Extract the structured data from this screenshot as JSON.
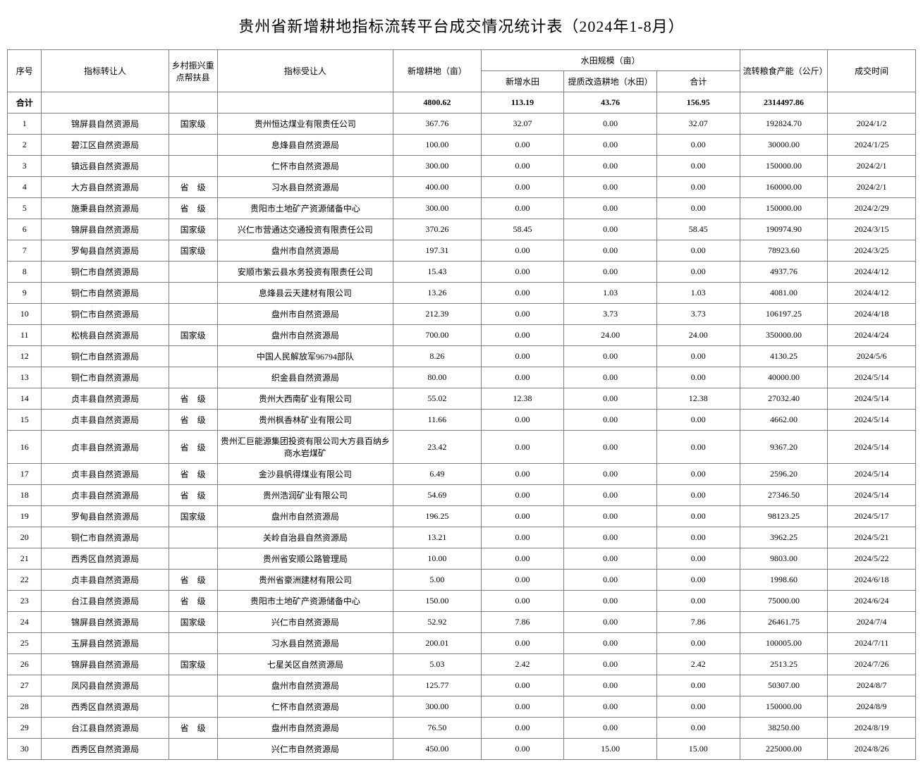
{
  "title": "贵州省新增耕地指标流转平台成交情况统计表（2024年1-8月）",
  "headers": {
    "seq": "序号",
    "transferor": "指标转让人",
    "village": "乡村振兴重点帮扶县",
    "transferee": "指标受让人",
    "newland": "新增耕地（亩）",
    "paddyGroup": "水田规模（亩）",
    "newpaddy": "新增水田",
    "improve": "提质改造耕地（水田）",
    "subtotal": "合计",
    "grain": "流转粮食产能（公斤）",
    "date": "成交时间"
  },
  "totalLabel": "合计",
  "totals": {
    "newland": "4800.62",
    "newpaddy": "113.19",
    "improve": "43.76",
    "subtotal": "156.95",
    "grain": "2314497.86"
  },
  "rows": [
    {
      "seq": "1",
      "transferor": "锦屏县自然资源局",
      "village": "国家级",
      "transferee": "贵州恒达煤业有限责任公司",
      "newland": "367.76",
      "newpaddy": "32.07",
      "improve": "0.00",
      "subtotal": "32.07",
      "grain": "192824.70",
      "date": "2024/1/2"
    },
    {
      "seq": "2",
      "transferor": "碧江区自然资源局",
      "village": "",
      "transferee": "息烽县自然资源局",
      "newland": "100.00",
      "newpaddy": "0.00",
      "improve": "0.00",
      "subtotal": "0.00",
      "grain": "30000.00",
      "date": "2024/1/25"
    },
    {
      "seq": "3",
      "transferor": "镇远县自然资源局",
      "village": "",
      "transferee": "仁怀市自然资源局",
      "newland": "300.00",
      "newpaddy": "0.00",
      "improve": "0.00",
      "subtotal": "0.00",
      "grain": "150000.00",
      "date": "2024/2/1"
    },
    {
      "seq": "4",
      "transferor": "大方县自然资源局",
      "village": "省　级",
      "transferee": "习水县自然资源局",
      "newland": "400.00",
      "newpaddy": "0.00",
      "improve": "0.00",
      "subtotal": "0.00",
      "grain": "160000.00",
      "date": "2024/2/1"
    },
    {
      "seq": "5",
      "transferor": "施秉县自然资源局",
      "village": "省　级",
      "transferee": "贵阳市土地矿产资源储备中心",
      "newland": "300.00",
      "newpaddy": "0.00",
      "improve": "0.00",
      "subtotal": "0.00",
      "grain": "150000.00",
      "date": "2024/2/29"
    },
    {
      "seq": "6",
      "transferor": "锦屏县自然资源局",
      "village": "国家级",
      "transferee": "兴仁市营通达交通投资有限责任公司",
      "newland": "370.26",
      "newpaddy": "58.45",
      "improve": "0.00",
      "subtotal": "58.45",
      "grain": "190974.90",
      "date": "2024/3/15"
    },
    {
      "seq": "7",
      "transferor": "罗甸县自然资源局",
      "village": "国家级",
      "transferee": "盘州市自然资源局",
      "newland": "197.31",
      "newpaddy": "0.00",
      "improve": "0.00",
      "subtotal": "0.00",
      "grain": "78923.60",
      "date": "2024/3/25"
    },
    {
      "seq": "8",
      "transferor": "铜仁市自然资源局",
      "village": "",
      "transferee": "安顺市紫云县水务投资有限责任公司",
      "newland": "15.43",
      "newpaddy": "0.00",
      "improve": "0.00",
      "subtotal": "0.00",
      "grain": "4937.76",
      "date": "2024/4/12"
    },
    {
      "seq": "9",
      "transferor": "铜仁市自然资源局",
      "village": "",
      "transferee": "息烽县云天建材有限公司",
      "newland": "13.26",
      "newpaddy": "0.00",
      "improve": "1.03",
      "subtotal": "1.03",
      "grain": "4081.00",
      "date": "2024/4/12"
    },
    {
      "seq": "10",
      "transferor": "铜仁市自然资源局",
      "village": "",
      "transferee": "盘州市自然资源局",
      "newland": "212.39",
      "newpaddy": "0.00",
      "improve": "3.73",
      "subtotal": "3.73",
      "grain": "106197.25",
      "date": "2024/4/18"
    },
    {
      "seq": "11",
      "transferor": "松桃县自然资源局",
      "village": "国家级",
      "transferee": "盘州市自然资源局",
      "newland": "700.00",
      "newpaddy": "0.00",
      "improve": "24.00",
      "subtotal": "24.00",
      "grain": "350000.00",
      "date": "2024/4/24"
    },
    {
      "seq": "12",
      "transferor": "铜仁市自然资源局",
      "village": "",
      "transferee": "中国人民解放军96794部队",
      "newland": "8.26",
      "newpaddy": "0.00",
      "improve": "0.00",
      "subtotal": "0.00",
      "grain": "4130.25",
      "date": "2024/5/6"
    },
    {
      "seq": "13",
      "transferor": "铜仁市自然资源局",
      "village": "",
      "transferee": "织金县自然资源局",
      "newland": "80.00",
      "newpaddy": "0.00",
      "improve": "0.00",
      "subtotal": "0.00",
      "grain": "40000.00",
      "date": "2024/5/14"
    },
    {
      "seq": "14",
      "transferor": "贞丰县自然资源局",
      "village": "省　级",
      "transferee": "贵州大西南矿业有限公司",
      "newland": "55.02",
      "newpaddy": "12.38",
      "improve": "0.00",
      "subtotal": "12.38",
      "grain": "27032.40",
      "date": "2024/5/14"
    },
    {
      "seq": "15",
      "transferor": "贞丰县自然资源局",
      "village": "省　级",
      "transferee": "贵州枫香林矿业有限公司",
      "newland": "11.66",
      "newpaddy": "0.00",
      "improve": "0.00",
      "subtotal": "0.00",
      "grain": "4662.00",
      "date": "2024/5/14"
    },
    {
      "seq": "16",
      "transferor": "贞丰县自然资源局",
      "village": "省　级",
      "transferee": "贵州汇巨能源集团投资有限公司大方县百纳乡商水岩煤矿",
      "newland": "23.42",
      "newpaddy": "0.00",
      "improve": "0.00",
      "subtotal": "0.00",
      "grain": "9367.20",
      "date": "2024/5/14"
    },
    {
      "seq": "17",
      "transferor": "贞丰县自然资源局",
      "village": "省　级",
      "transferee": "金沙县帆得煤业有限公司",
      "newland": "6.49",
      "newpaddy": "0.00",
      "improve": "0.00",
      "subtotal": "0.00",
      "grain": "2596.20",
      "date": "2024/5/14"
    },
    {
      "seq": "18",
      "transferor": "贞丰县自然资源局",
      "village": "省　级",
      "transferee": "贵州浩润矿业有限公司",
      "newland": "54.69",
      "newpaddy": "0.00",
      "improve": "0.00",
      "subtotal": "0.00",
      "grain": "27346.50",
      "date": "2024/5/14"
    },
    {
      "seq": "19",
      "transferor": "罗甸县自然资源局",
      "village": "国家级",
      "transferee": "盘州市自然资源局",
      "newland": "196.25",
      "newpaddy": "0.00",
      "improve": "0.00",
      "subtotal": "0.00",
      "grain": "98123.25",
      "date": "2024/5/17"
    },
    {
      "seq": "20",
      "transferor": "铜仁市自然资源局",
      "village": "",
      "transferee": "关岭自治县自然资源局",
      "newland": "13.21",
      "newpaddy": "0.00",
      "improve": "0.00",
      "subtotal": "0.00",
      "grain": "3962.25",
      "date": "2024/5/21"
    },
    {
      "seq": "21",
      "transferor": "西秀区自然资源局",
      "village": "",
      "transferee": "贵州省安顺公路管理局",
      "newland": "10.00",
      "newpaddy": "0.00",
      "improve": "0.00",
      "subtotal": "0.00",
      "grain": "9803.00",
      "date": "2024/5/22"
    },
    {
      "seq": "22",
      "transferor": "贞丰县自然资源局",
      "village": "省　级",
      "transferee": "贵州省豪洲建材有限公司",
      "newland": "5.00",
      "newpaddy": "0.00",
      "improve": "0.00",
      "subtotal": "0.00",
      "grain": "1998.60",
      "date": "2024/6/18"
    },
    {
      "seq": "23",
      "transferor": "台江县自然资源局",
      "village": "省　级",
      "transferee": "贵阳市土地矿产资源储备中心",
      "newland": "150.00",
      "newpaddy": "0.00",
      "improve": "0.00",
      "subtotal": "0.00",
      "grain": "75000.00",
      "date": "2024/6/24"
    },
    {
      "seq": "24",
      "transferor": "锦屏县自然资源局",
      "village": "国家级",
      "transferee": "兴仁市自然资源局",
      "newland": "52.92",
      "newpaddy": "7.86",
      "improve": "0.00",
      "subtotal": "7.86",
      "grain": "26461.75",
      "date": "2024/7/4"
    },
    {
      "seq": "25",
      "transferor": "玉屏县自然资源局",
      "village": "",
      "transferee": "习水县自然资源局",
      "newland": "200.01",
      "newpaddy": "0.00",
      "improve": "0.00",
      "subtotal": "0.00",
      "grain": "100005.00",
      "date": "2024/7/11"
    },
    {
      "seq": "26",
      "transferor": "锦屏县自然资源局",
      "village": "国家级",
      "transferee": "七星关区自然资源局",
      "newland": "5.03",
      "newpaddy": "2.42",
      "improve": "0.00",
      "subtotal": "2.42",
      "grain": "2513.25",
      "date": "2024/7/26"
    },
    {
      "seq": "27",
      "transferor": "凤冈县自然资源局",
      "village": "",
      "transferee": "盘州市自然资源局",
      "newland": "125.77",
      "newpaddy": "0.00",
      "improve": "0.00",
      "subtotal": "0.00",
      "grain": "50307.00",
      "date": "2024/8/7"
    },
    {
      "seq": "28",
      "transferor": "西秀区自然资源局",
      "village": "",
      "transferee": "仁怀市自然资源局",
      "newland": "300.00",
      "newpaddy": "0.00",
      "improve": "0.00",
      "subtotal": "0.00",
      "grain": "150000.00",
      "date": "2024/8/9"
    },
    {
      "seq": "29",
      "transferor": "台江县自然资源局",
      "village": "省　级",
      "transferee": "盘州市自然资源局",
      "newland": "76.50",
      "newpaddy": "0.00",
      "improve": "0.00",
      "subtotal": "0.00",
      "grain": "38250.00",
      "date": "2024/8/19"
    },
    {
      "seq": "30",
      "transferor": "西秀区自然资源局",
      "village": "",
      "transferee": "兴仁市自然资源局",
      "newland": "450.00",
      "newpaddy": "0.00",
      "improve": "15.00",
      "subtotal": "15.00",
      "grain": "225000.00",
      "date": "2024/8/26"
    }
  ]
}
